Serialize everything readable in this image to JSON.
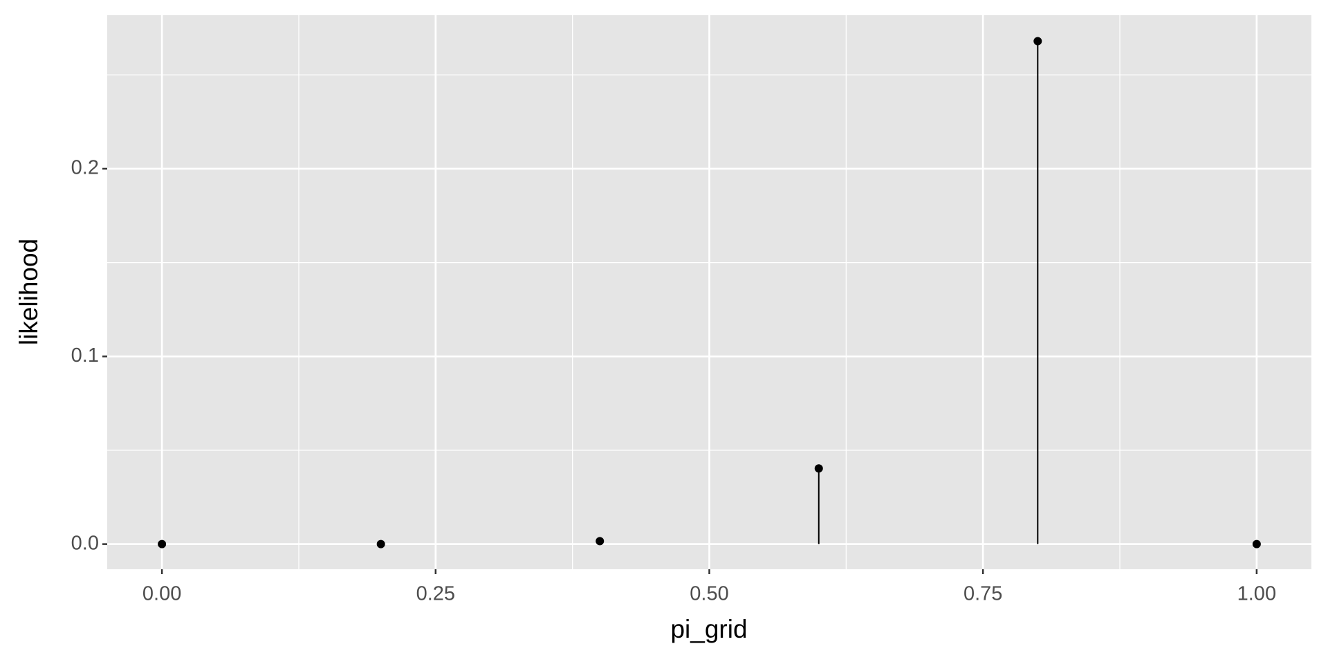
{
  "chart_data": {
    "type": "lollipop",
    "x_label": "pi_grid",
    "y_label": "likelihood",
    "x": [
      0,
      0.2,
      0.4,
      0.6,
      0.8,
      1.0
    ],
    "values": [
      0,
      4.1e-06,
      0.00157,
      0.0403,
      0.268,
      0
    ],
    "color": "#000000",
    "background": "#e5e5e5",
    "xlim": [
      -0.05,
      1.05
    ],
    "ylim": [
      -0.0134,
      0.2818
    ],
    "xticks": [
      {
        "value": 0,
        "label": "0.00"
      },
      0.25,
      {
        "value": 0.5,
        "label": "0.50"
      },
      0.75,
      {
        "value": 1,
        "label": "1.00"
      }
    ],
    "yticks": [
      {
        "value": 0,
        "label": "0.0"
      },
      0.1,
      0.2
    ],
    "minor_xticks": [
      0.125,
      0.375,
      0.625,
      0.875
    ],
    "minor_yticks": [
      0.05,
      0.15,
      0.25
    ],
    "grid": true
  }
}
